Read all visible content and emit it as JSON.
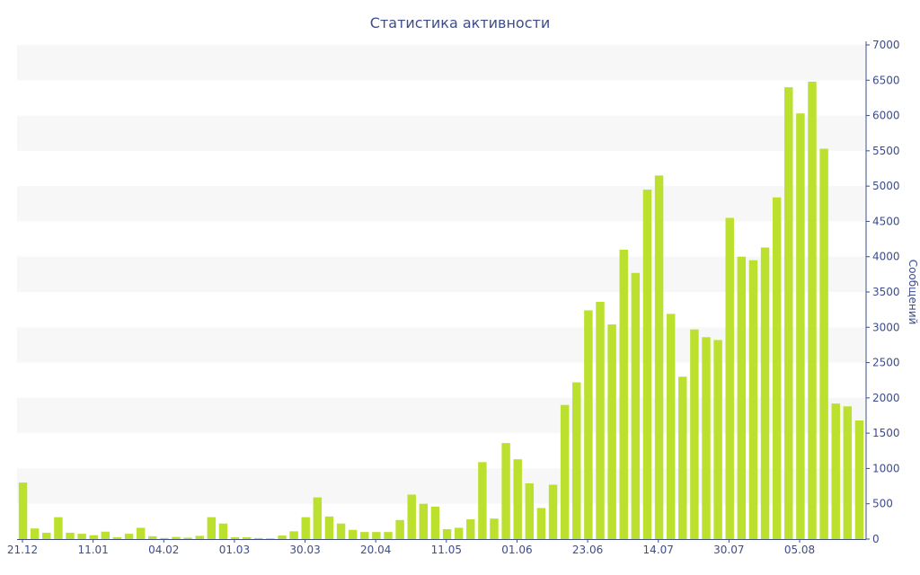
{
  "chart_data": {
    "type": "bar",
    "title": "Статистика активности",
    "ylabel": "Сообщений",
    "ylim": [
      0,
      7000
    ],
    "yticks": [
      0,
      500,
      1000,
      1500,
      2000,
      2500,
      3000,
      3500,
      4000,
      4500,
      5000,
      5500,
      6000,
      6500,
      7000
    ],
    "y_axis_side": "right",
    "grid": "alternating horizontal bands",
    "bar_color": "#bbe02e",
    "band_color": "#f7f7f7",
    "axis_color": "#3e4c8c",
    "x_tick_labels": [
      "21.12",
      "11.01",
      "04.02",
      "01.03",
      "30.03",
      "20.04",
      "11.05",
      "01.06",
      "23.06",
      "14.07",
      "30.07",
      "05.08"
    ],
    "values": [
      800,
      150,
      90,
      310,
      90,
      75,
      55,
      105,
      25,
      75,
      160,
      40,
      15,
      30,
      20,
      45,
      310,
      220,
      25,
      25,
      15,
      10,
      50,
      110,
      310,
      590,
      320,
      220,
      130,
      100,
      100,
      100,
      270,
      630,
      500,
      460,
      140,
      160,
      280,
      1090,
      290,
      1360,
      1130,
      790,
      440,
      770,
      1900,
      2220,
      3240,
      3360,
      3040,
      4100,
      3770,
      4950,
      5150,
      3190,
      2300,
      2970,
      2860,
      2820,
      4550,
      4000,
      3950,
      4130,
      4840,
      6400,
      6030,
      6480,
      5530,
      1920,
      1880,
      1680
    ]
  }
}
